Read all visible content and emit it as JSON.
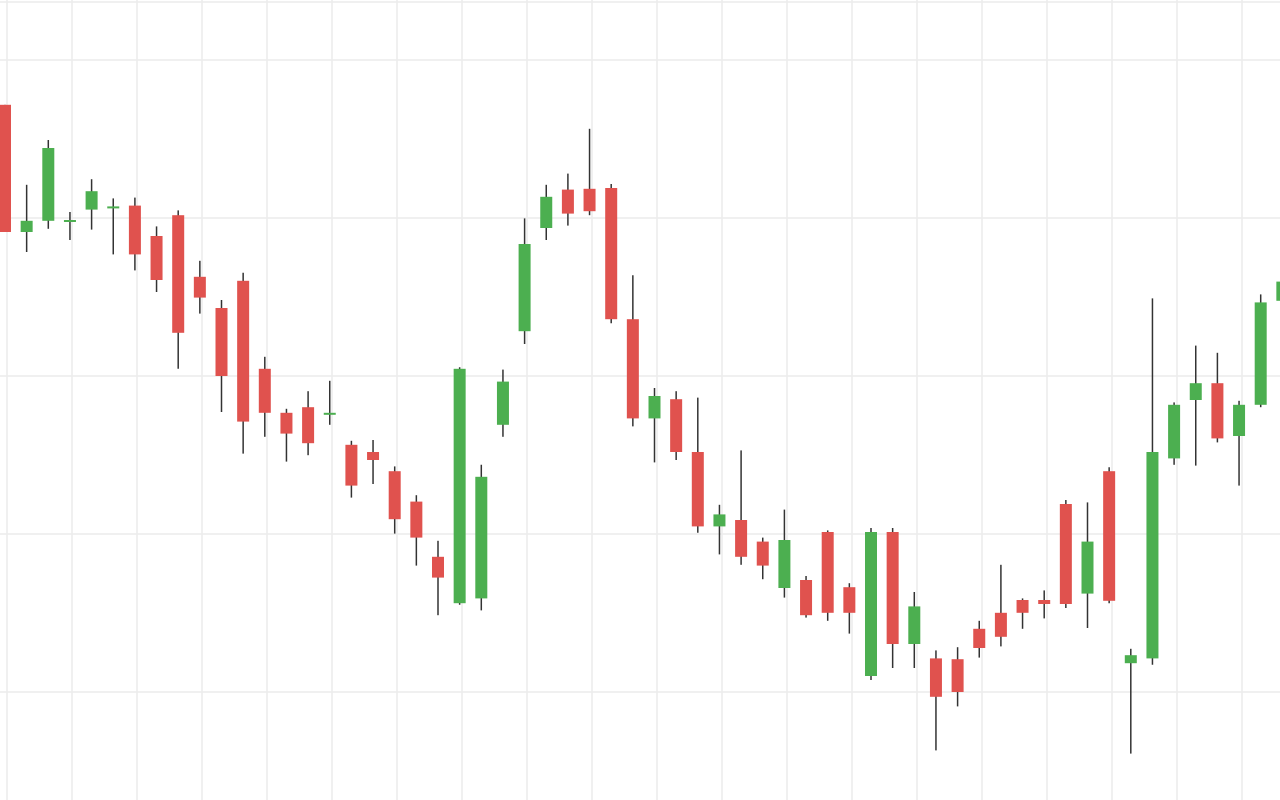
{
  "colors": {
    "background": "#ffffff",
    "grid": "#ececec",
    "up": "#4caf50",
    "down": "#e0524e",
    "wick": "#333333"
  },
  "chart_data": {
    "type": "candlestick",
    "title": "",
    "xlabel": "",
    "ylabel": "",
    "grid": true,
    "legend": "none",
    "ylim": [
      0,
      100
    ],
    "x": [
      0,
      1,
      2,
      3,
      4,
      5,
      6,
      7,
      8,
      9,
      10,
      11,
      12,
      13,
      14,
      15,
      16,
      17,
      18,
      19,
      20,
      21,
      22,
      23,
      24,
      25,
      26,
      27,
      28,
      29,
      30,
      31,
      32,
      33,
      34,
      35,
      36,
      37,
      38,
      39,
      40,
      41,
      42,
      43,
      44,
      45,
      46,
      47,
      48,
      49,
      50,
      51,
      52,
      53,
      54,
      55,
      56,
      57,
      58,
      59
    ],
    "open": [
      86.9,
      71.0,
      72.4,
      72.5,
      73.8,
      74.2,
      74.3,
      70.5,
      73.1,
      65.4,
      61.5,
      64.9,
      53.9,
      48.4,
      49.1,
      48.4,
      44.4,
      43.5,
      41.1,
      37.3,
      30.4,
      24.6,
      25.2,
      46.9,
      58.6,
      71.5,
      76.3,
      76.4,
      76.5,
      60.1,
      47.7,
      50.1,
      43.5,
      34.2,
      35.0,
      32.3,
      26.5,
      27.5,
      33.5,
      26.6,
      15.5,
      33.5,
      19.5,
      17.7,
      17.6,
      21.4,
      23.4,
      25.0,
      25.0,
      37.0,
      25.8,
      41.1,
      17.1,
      17.7,
      42.7,
      50.0,
      52.1,
      45.5,
      49.4,
      62.4
    ],
    "close": [
      71.0,
      72.4,
      81.5,
      72.5,
      76.1,
      74.2,
      68.2,
      65.0,
      58.4,
      62.8,
      53.0,
      47.3,
      48.4,
      45.8,
      44.6,
      48.4,
      39.3,
      42.5,
      35.1,
      32.8,
      27.8,
      53.9,
      40.4,
      52.3,
      69.5,
      75.4,
      73.3,
      73.6,
      60.1,
      47.7,
      50.5,
      43.5,
      34.2,
      35.7,
      30.4,
      29.3,
      32.5,
      23.1,
      23.4,
      23.4,
      33.5,
      19.5,
      24.2,
      12.9,
      13.5,
      19.0,
      20.4,
      23.4,
      24.5,
      24.5,
      32.3,
      24.9,
      18.1,
      43.5,
      49.4,
      52.1,
      45.2,
      49.4,
      62.2,
      64.8
    ]
  }
}
